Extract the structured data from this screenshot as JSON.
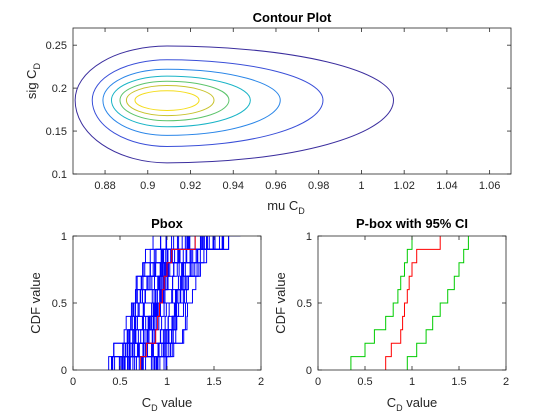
{
  "chart_data": [
    {
      "type": "contour",
      "title": "Contour Plot",
      "xlabel": "mu C",
      "xlabel_sub": "D",
      "ylabel": "sig C",
      "ylabel_sub": "D",
      "xlim": [
        0.865,
        1.07
      ],
      "ylim": [
        0.1,
        0.27
      ],
      "xticks": [
        0.88,
        0.9,
        0.92,
        0.94,
        0.96,
        0.98,
        1,
        1.02,
        1.04,
        1.06
      ],
      "xtick_labels": [
        "0.88",
        "0.9",
        "0.92",
        "0.94",
        "0.96",
        "0.98",
        "1",
        "1.02",
        "1.04",
        "1.06"
      ],
      "yticks": [
        0.1,
        0.15,
        0.2,
        0.25
      ],
      "ytick_labels": [
        "0.1",
        "0.15",
        "0.2",
        "0.25"
      ],
      "center": {
        "x": 0.909,
        "y": 0.186
      },
      "levels": [
        {
          "left": 0.866,
          "right": 1.015,
          "bottom": 0.113,
          "top": 0.249,
          "color": "#3b2e9e"
        },
        {
          "left": 0.874,
          "right": 0.982,
          "bottom": 0.132,
          "top": 0.233,
          "color": "#3a4fd8"
        },
        {
          "left": 0.879,
          "right": 0.962,
          "bottom": 0.145,
          "top": 0.222,
          "color": "#2a86e8"
        },
        {
          "left": 0.883,
          "right": 0.948,
          "bottom": 0.155,
          "top": 0.214,
          "color": "#19b4c6"
        },
        {
          "left": 0.887,
          "right": 0.938,
          "bottom": 0.162,
          "top": 0.208,
          "color": "#5cc46b"
        },
        {
          "left": 0.89,
          "right": 0.931,
          "bottom": 0.168,
          "top": 0.203,
          "color": "#c8c22c"
        },
        {
          "left": 0.894,
          "right": 0.924,
          "bottom": 0.174,
          "top": 0.197,
          "color": "#f4dc1a"
        }
      ]
    },
    {
      "type": "step",
      "title": "Pbox",
      "xlabel": "C",
      "xlabel_sub": "D",
      "xlabel_suffix": " value",
      "ylabel": "CDF value",
      "xlim": [
        0,
        2
      ],
      "ylim": [
        0,
        1
      ],
      "xticks": [
        0,
        0.5,
        1,
        1.5,
        2
      ],
      "xtick_labels": [
        "0",
        "0.5",
        "1",
        "1.5",
        "2"
      ],
      "yticks": [
        0,
        0.5,
        1
      ],
      "ytick_labels": [
        "0",
        "0.5",
        "1"
      ],
      "band_color": "#0000ff",
      "band_count": 40,
      "band_seed": 7,
      "band_min_start": 0.0,
      "band_max_end": 1.78,
      "median_color": "#ff0000",
      "median_x": [
        0.72,
        0.78,
        0.88,
        0.9,
        0.92,
        0.95,
        0.97,
        1.0,
        1.05,
        1.3
      ],
      "median_x_end": 1.3
    },
    {
      "type": "step",
      "title": "P-box with 95% CI",
      "xlabel": "C",
      "xlabel_sub": "D",
      "xlabel_suffix": " value",
      "ylabel": "CDF value",
      "xlim": [
        0,
        2
      ],
      "ylim": [
        0,
        1
      ],
      "xticks": [
        0,
        0.5,
        1,
        1.5,
        2
      ],
      "xtick_labels": [
        "0",
        "0.5",
        "1",
        "1.5",
        "2"
      ],
      "yticks": [
        0,
        0.5,
        1
      ],
      "ytick_labels": [
        "0",
        "0.5",
        "1"
      ],
      "series": [
        {
          "color": "#00cc00",
          "x": [
            0.35,
            0.5,
            0.6,
            0.72,
            0.8,
            0.85,
            0.88,
            0.92,
            0.95,
            1.0
          ]
        },
        {
          "color": "#00cc00",
          "x": [
            0.95,
            1.05,
            1.15,
            1.22,
            1.3,
            1.38,
            1.45,
            1.5,
            1.55,
            1.6
          ]
        },
        {
          "color": "#ff0000",
          "x": [
            0.72,
            0.78,
            0.88,
            0.9,
            0.92,
            0.95,
            0.97,
            1.0,
            1.05,
            1.3
          ]
        }
      ]
    }
  ]
}
